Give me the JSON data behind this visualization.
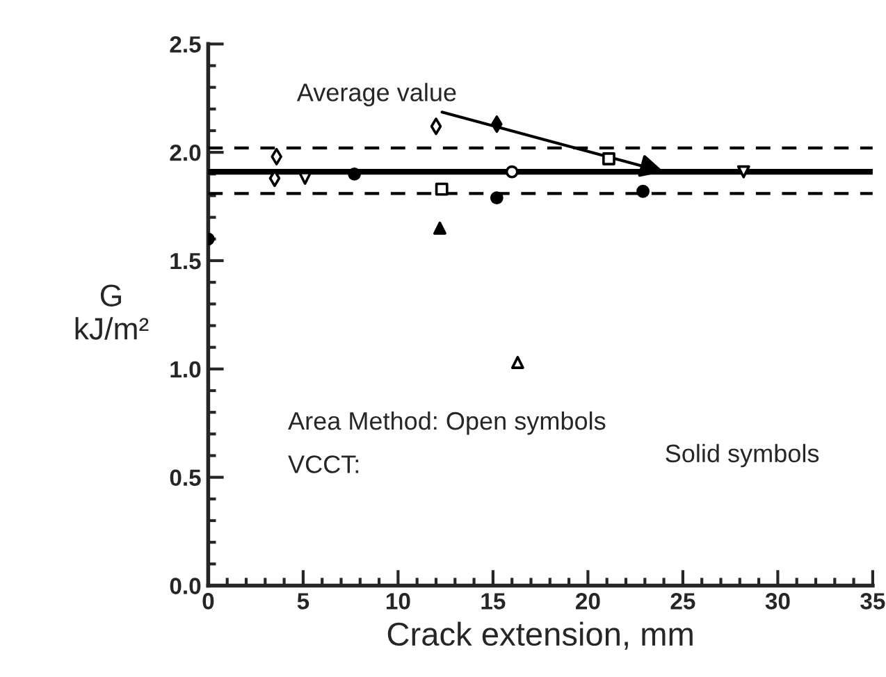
{
  "chart_data": {
    "type": "scatter",
    "xlabel": "Crack extension, mm",
    "ylabel": "G\nkJ/m²",
    "xlim": [
      0,
      35
    ],
    "xticks": [
      0,
      5,
      10,
      15,
      20,
      25,
      30,
      35
    ],
    "ylim": [
      0,
      2.5
    ],
    "yticks": [
      {
        "value": 0,
        "label": "0.0"
      },
      {
        "value": 0.5,
        "label": "0.5"
      },
      {
        "value": 1,
        "label": "1.0"
      },
      {
        "value": 1.5,
        "label": "1.5"
      },
      {
        "value": 2,
        "label": "2.0"
      },
      {
        "value": 2.5,
        "label": "2.5"
      }
    ],
    "grid": false,
    "legend": false,
    "series": [
      {
        "color": "#000000",
        "marker": "circle",
        "x": [
          0,
          7.7,
          15.2,
          22.9
        ],
        "values": [
          1.6,
          1.9,
          1.79,
          1.82
        ]
      },
      {
        "color": "#ffffff",
        "marker": "diamond",
        "x": [
          3.6,
          3.5,
          12.0
        ],
        "values": [
          1.98,
          1.88,
          2.12
        ]
      },
      {
        "color": "#ffffff",
        "marker": "triangle_down",
        "x": [
          5.1,
          28.2
        ],
        "values": [
          1.88,
          1.91
        ]
      },
      {
        "color": "#ffffff",
        "marker": "square",
        "x": [
          12.3,
          21.1
        ],
        "values": [
          1.83,
          1.97
        ]
      },
      {
        "color": "#000000",
        "marker": "triangle",
        "x": [
          12.2
        ],
        "values": [
          1.65
        ]
      },
      {
        "color": "#000000",
        "marker": "diamond",
        "x": [
          15.2
        ],
        "values": [
          2.13
        ]
      },
      {
        "color": "#ffffff",
        "marker": "circle",
        "x": [
          16.0
        ],
        "values": [
          1.91
        ]
      },
      {
        "color": "#ffffff",
        "marker": "triangle",
        "x": [
          16.3
        ],
        "values": [
          1.03
        ]
      }
    ],
    "ref_lines": [
      {
        "axis": "y",
        "value": 2.02,
        "color": "#000000",
        "line_style": "dashed"
      },
      {
        "axis": "y",
        "value": 1.91,
        "color": "#000000",
        "line_style": "solid"
      },
      {
        "axis": "y",
        "value": 1.81,
        "color": "#000000",
        "line_style": "dashed"
      }
    ],
    "annotations": [
      {
        "text": "Average value",
        "x": 24,
        "y": 1.91
      },
      "Area Method: Open symbols",
      "VCCT:",
      "Solid symbols"
    ]
  }
}
